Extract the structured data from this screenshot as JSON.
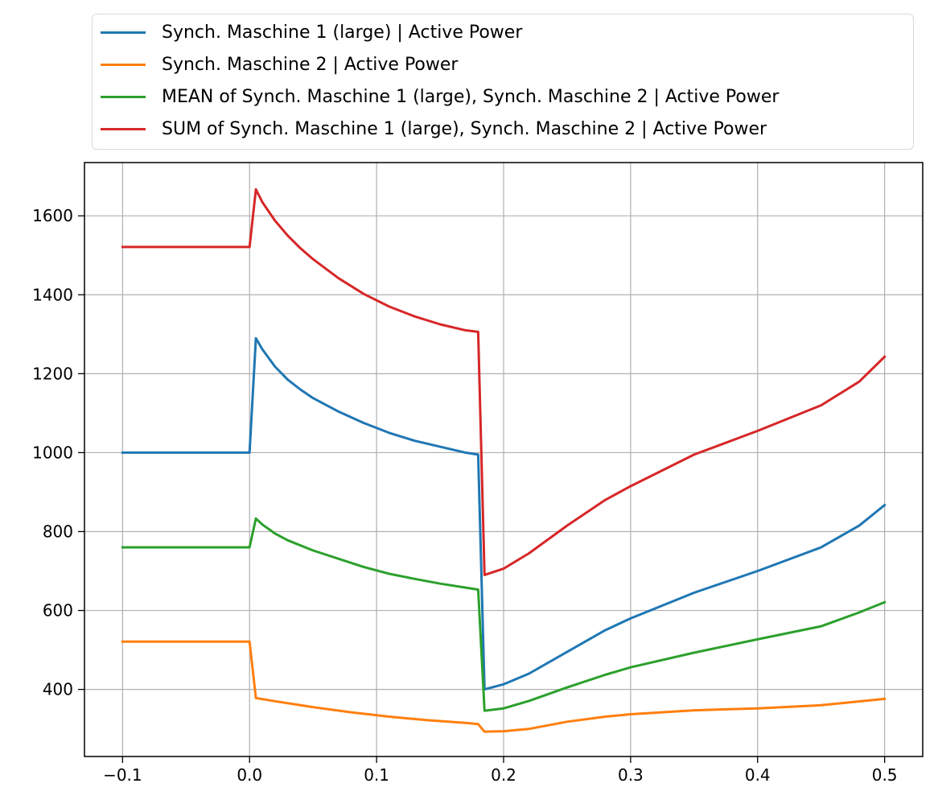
{
  "chart_data": {
    "type": "line",
    "title": "",
    "xlabel": "",
    "ylabel": "",
    "xlim": [
      -0.13,
      0.53
    ],
    "ylim": [
      230,
      1735
    ],
    "xticks": [
      -0.1,
      0.0,
      0.1,
      0.2,
      0.3,
      0.4,
      0.5
    ],
    "xtick_labels": [
      "−0.1",
      "0.0",
      "0.1",
      "0.2",
      "0.3",
      "0.4",
      "0.5"
    ],
    "yticks": [
      400,
      600,
      800,
      1000,
      1200,
      1400,
      1600
    ],
    "ytick_labels": [
      "400",
      "600",
      "800",
      "1000",
      "1200",
      "1400",
      "1600"
    ],
    "grid": true,
    "legend_position": "top",
    "series": [
      {
        "name": "Synch. Maschine 1 (large) | Active Power",
        "color": "#1f77b4",
        "x": [
          -0.1,
          0.0,
          0.005,
          0.01,
          0.02,
          0.03,
          0.04,
          0.05,
          0.07,
          0.09,
          0.11,
          0.13,
          0.15,
          0.17,
          0.18,
          0.185,
          0.2,
          0.22,
          0.25,
          0.28,
          0.3,
          0.35,
          0.4,
          0.45,
          0.48,
          0.5
        ],
        "y": [
          1000,
          1000,
          1290,
          1262,
          1218,
          1185,
          1160,
          1138,
          1104,
          1075,
          1050,
          1030,
          1015,
          1000,
          995,
          400,
          413,
          440,
          495,
          550,
          580,
          645,
          700,
          760,
          815,
          867
        ]
      },
      {
        "name": "Synch. Maschine 2 | Active Power",
        "color": "#ff7f0e",
        "x": [
          -0.1,
          0.0,
          0.005,
          0.02,
          0.05,
          0.08,
          0.11,
          0.14,
          0.17,
          0.18,
          0.185,
          0.2,
          0.22,
          0.25,
          0.28,
          0.3,
          0.35,
          0.4,
          0.45,
          0.5
        ],
        "y": [
          521,
          521,
          378,
          370,
          355,
          342,
          331,
          322,
          315,
          312,
          293,
          294,
          300,
          318,
          331,
          337,
          347,
          352,
          360,
          376
        ]
      },
      {
        "name": "MEAN of Synch. Maschine 1 (large), Synch. Maschine 2 | Active Power",
        "color": "#2ca02c",
        "x": [
          -0.1,
          0.0,
          0.005,
          0.01,
          0.02,
          0.03,
          0.05,
          0.07,
          0.09,
          0.11,
          0.13,
          0.15,
          0.17,
          0.18,
          0.185,
          0.2,
          0.22,
          0.25,
          0.28,
          0.3,
          0.35,
          0.4,
          0.45,
          0.48,
          0.5
        ],
        "y": [
          760,
          760,
          833,
          818,
          795,
          778,
          752,
          731,
          710,
          693,
          680,
          668,
          658,
          653,
          346,
          352,
          371,
          405,
          437,
          456,
          493,
          527,
          560,
          595,
          621
        ]
      },
      {
        "name": "SUM of Synch. Maschine 1 (large), Synch. Maschine 2 | Active Power",
        "color": "#d62728",
        "x": [
          -0.1,
          0.0,
          0.005,
          0.01,
          0.02,
          0.03,
          0.04,
          0.05,
          0.07,
          0.09,
          0.11,
          0.13,
          0.15,
          0.17,
          0.18,
          0.185,
          0.2,
          0.22,
          0.25,
          0.28,
          0.3,
          0.35,
          0.4,
          0.45,
          0.48,
          0.5
        ],
        "y": [
          1521,
          1521,
          1667,
          1635,
          1588,
          1550,
          1518,
          1490,
          1442,
          1402,
          1370,
          1345,
          1325,
          1310,
          1306,
          690,
          706,
          745,
          815,
          880,
          915,
          995,
          1055,
          1120,
          1180,
          1243
        ]
      }
    ]
  }
}
